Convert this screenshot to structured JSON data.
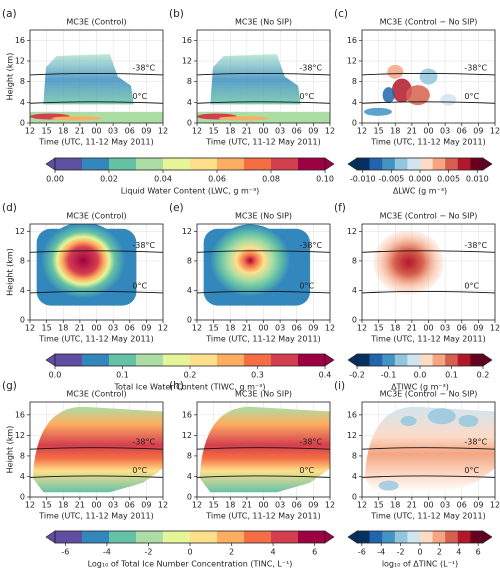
{
  "chart_data": [
    {
      "type": "heatmap",
      "label": "(a)",
      "title": "MC3E (Control)",
      "field": "lwc",
      "ylabel": "Height (km)",
      "xlabel": "Time (UTC, 11-12 May 2011)",
      "categories": [
        "12",
        "15",
        "18",
        "21",
        "00",
        "03",
        "06",
        "09",
        "12"
      ],
      "ylim": [
        0,
        18
      ],
      "yticks": [
        0,
        4,
        8,
        12,
        16
      ],
      "grid": true,
      "isotherms": [
        {
          "label": "-38°C",
          "height": 9.5
        },
        {
          "label": "0°C",
          "height": 4
        }
      ]
    },
    {
      "type": "heatmap",
      "label": "(b)",
      "title": "MC3E (No SIP)",
      "field": "lwc",
      "xlabel": "Time (UTC, 11-12 May 2011)",
      "categories": [
        "12",
        "15",
        "18",
        "21",
        "00",
        "03",
        "06",
        "09",
        "12"
      ],
      "ylim": [
        0,
        18
      ],
      "yticks": [
        0,
        4,
        8,
        12,
        16
      ],
      "grid": true,
      "isotherms": [
        {
          "label": "-38°C",
          "height": 9.5
        },
        {
          "label": "0°C",
          "height": 4
        }
      ],
      "colorbar": {
        "label": "Liquid Water Content (LWC, g m⁻³)",
        "lim": [
          0,
          0.1
        ],
        "colors": [
          "#5e4fa2",
          "#3288bd",
          "#66c2a5",
          "#abdda4",
          "#e6f598",
          "#fee08b",
          "#fdae61",
          "#f46d43",
          "#d53e4f",
          "#9e0142"
        ],
        "ticks": [
          {
            "value": 0,
            "label": "0.00"
          },
          {
            "value": 0.02,
            "label": "0.02"
          },
          {
            "value": 0.04,
            "label": "0.04"
          },
          {
            "value": 0.06,
            "label": "0.06"
          },
          {
            "value": 0.08,
            "label": "0.08"
          },
          {
            "value": 0.1,
            "label": "0.10"
          }
        ]
      }
    },
    {
      "type": "heatmap",
      "label": "(c)",
      "title": "MC3E (Control − No SIP)",
      "field": "dlwc",
      "xlabel": "Time (UTC, 11-12 May 2011)",
      "categories": [
        "12",
        "15",
        "18",
        "21",
        "00",
        "03",
        "06",
        "09",
        "12"
      ],
      "ylim": [
        0,
        18
      ],
      "yticks": [
        0,
        4,
        8,
        12,
        16
      ],
      "grid": true,
      "isotherms": [
        {
          "label": "-38°C",
          "height": 9.5
        },
        {
          "label": "0°C",
          "height": 4
        }
      ],
      "colorbar": {
        "label": "ΔLWC (g m⁻³)",
        "lim": [
          -0.011,
          0.011
        ],
        "colors": [
          "#053061",
          "#2166ac",
          "#4393c3",
          "#92c5de",
          "#d1e5f0",
          "#fddbc7",
          "#f4a582",
          "#d6604d",
          "#b2182b",
          "#67001f"
        ],
        "ticks": [
          {
            "value": -0.01,
            "label": "-0.010"
          },
          {
            "value": -0.005,
            "label": "-0.005"
          },
          {
            "value": 0,
            "label": "0.000"
          },
          {
            "value": 0.005,
            "label": "0.005"
          },
          {
            "value": 0.01,
            "label": "0.010"
          }
        ]
      }
    },
    {
      "type": "heatmap",
      "label": "(d)",
      "title": "MC3E (Control)",
      "field": "tiwc",
      "ylabel": "Height (km)",
      "xlabel": "Time (UTC, 11-12 May 2011)",
      "categories": [
        "12",
        "15",
        "18",
        "21",
        "00",
        "03",
        "06",
        "09",
        "12"
      ],
      "ylim": [
        0,
        13
      ],
      "yticks": [
        0,
        4,
        8,
        12
      ],
      "grid": true,
      "isotherms": [
        {
          "label": "-38°C",
          "height": 9.3
        },
        {
          "label": "0°C",
          "height": 3.8
        }
      ]
    },
    {
      "type": "heatmap",
      "label": "(e)",
      "title": "MC3E (No SIP)",
      "field": "tiwc2",
      "xlabel": "Time (UTC, 11-12 May 2011)",
      "categories": [
        "12",
        "15",
        "18",
        "21",
        "00",
        "03",
        "06",
        "09",
        "12"
      ],
      "ylim": [
        0,
        13
      ],
      "yticks": [
        0,
        4,
        8,
        12
      ],
      "grid": true,
      "isotherms": [
        {
          "label": "-38°C",
          "height": 9.3
        },
        {
          "label": "0°C",
          "height": 3.8
        }
      ],
      "colorbar": {
        "label": "Total Ice Water Content (TIWC, g m⁻³)",
        "lim": [
          0,
          0.4
        ],
        "colors": [
          "#5e4fa2",
          "#3288bd",
          "#66c2a5",
          "#abdda4",
          "#e6f598",
          "#fee08b",
          "#fdae61",
          "#f46d43",
          "#d53e4f",
          "#9e0142"
        ],
        "ticks": [
          {
            "value": 0,
            "label": "0.0"
          },
          0.1,
          0.2,
          0.3,
          0.4
        ]
      }
    },
    {
      "type": "heatmap",
      "label": "(f)",
      "title": "MC3E (Control − No SIP)",
      "field": "dtiwc",
      "xlabel": "Time (UTC, 11-12 May 2011)",
      "categories": [
        "12",
        "15",
        "18",
        "21",
        "00",
        "03",
        "06",
        "09",
        "12"
      ],
      "ylim": [
        0,
        13
      ],
      "yticks": [
        0,
        4,
        8,
        12
      ],
      "grid": true,
      "isotherms": [
        {
          "label": "-38°C",
          "height": 9.3
        },
        {
          "label": "0°C",
          "height": 3.8
        }
      ],
      "colorbar": {
        "label": "ΔTIWC (g m⁻³)",
        "lim": [
          -0.2,
          0.2
        ],
        "colors": [
          "#053061",
          "#2166ac",
          "#4393c3",
          "#92c5de",
          "#d1e5f0",
          "#fddbc7",
          "#f4a582",
          "#d6604d",
          "#b2182b",
          "#67001f"
        ],
        "ticks": [
          -0.2,
          -0.1,
          {
            "value": 0,
            "label": "0.0"
          },
          0.1,
          0.2
        ]
      }
    },
    {
      "type": "heatmap",
      "label": "(g)",
      "title": "MC3E (Control)",
      "field": "tinc",
      "ylabel": "Height (km)",
      "xlabel": "Time (UTC, 11-12 May 2011)",
      "categories": [
        "12",
        "15",
        "18",
        "21",
        "00",
        "03",
        "06",
        "09",
        "12"
      ],
      "ylim": [
        0,
        18.5
      ],
      "yticks": [
        0,
        4,
        8,
        12,
        16
      ],
      "grid": true,
      "isotherms": [
        {
          "label": "-38°C",
          "height": 9.5
        },
        {
          "label": "0°C",
          "height": 4
        }
      ]
    },
    {
      "type": "heatmap",
      "label": "(h)",
      "title": "MC3E (No SIP)",
      "field": "tinc",
      "xlabel": "Time (UTC, 11-12 May 2011)",
      "categories": [
        "12",
        "15",
        "18",
        "21",
        "00",
        "03",
        "06",
        "09",
        "12"
      ],
      "ylim": [
        0,
        18.5
      ],
      "yticks": [
        0,
        4,
        8,
        12,
        16
      ],
      "grid": true,
      "isotherms": [
        {
          "label": "-38°C",
          "height": 9.5
        },
        {
          "label": "0°C",
          "height": 4
        }
      ],
      "colorbar": {
        "label": "Log₁₀ of Total Ice Number Concentration (TINC, L⁻¹)",
        "lim": [
          -6.5,
          6.5
        ],
        "colors": [
          "#5e4fa2",
          "#3288bd",
          "#66c2a5",
          "#abdda4",
          "#e6f598",
          "#fee08b",
          "#fdae61",
          "#f46d43",
          "#d53e4f",
          "#9e0142"
        ],
        "ticks": [
          -6,
          -4,
          -2,
          0,
          2,
          4,
          6
        ]
      }
    },
    {
      "type": "heatmap",
      "label": "(i)",
      "title": "MC3E (Control − No SIP)",
      "field": "dtinc",
      "xlabel": "Time (UTC, 11-12 May 2011)",
      "categories": [
        "12",
        "15",
        "18",
        "21",
        "00",
        "03",
        "06",
        "09",
        "12"
      ],
      "ylim": [
        0,
        18.5
      ],
      "yticks": [
        0,
        4,
        8,
        12,
        16
      ],
      "grid": true,
      "isotherms": [
        {
          "label": "-38°C",
          "height": 9.5
        },
        {
          "label": "0°C",
          "height": 4
        }
      ],
      "colorbar": {
        "label": "log₁₀ of ΔTINC (L⁻¹)",
        "lim": [
          -6.5,
          6.5
        ],
        "colors": [
          "#053061",
          "#2166ac",
          "#4393c3",
          "#92c5de",
          "#d1e5f0",
          "#fddbc7",
          "#f4a582",
          "#d6604d",
          "#b2182b",
          "#67001f"
        ],
        "ticks": [
          -6,
          -4,
          -2,
          0,
          2,
          4,
          6
        ]
      }
    }
  ]
}
